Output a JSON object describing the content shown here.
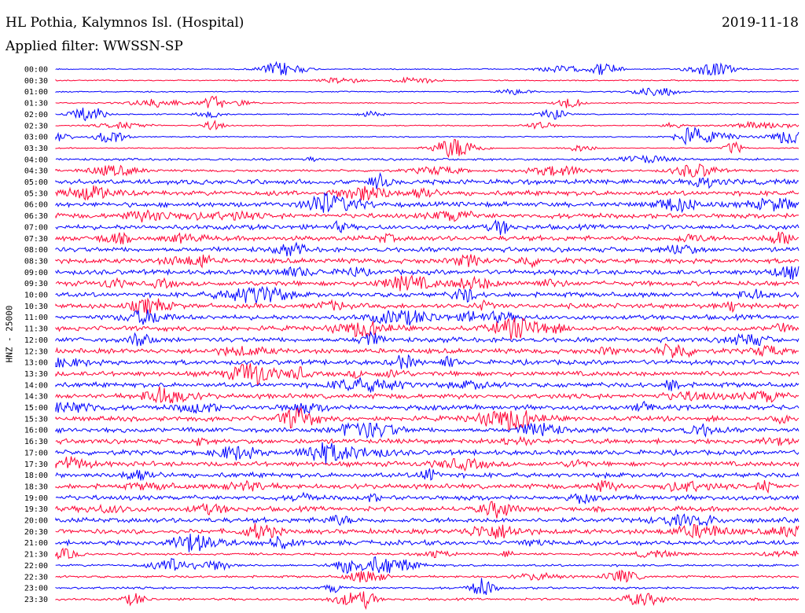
{
  "header": {
    "station": "HL Pothia, Kalymnos Isl. (Hospital)",
    "date": "2019-11-18",
    "filter": "Applied filter: WWSSN-SP"
  },
  "chart_data": {
    "type": "line",
    "title": "HL Pothia, Kalymnos Isl. (Hospital)",
    "date": "2019-11-18",
    "filter": "WWSSN-SP",
    "ylabel": "HNZ - 25000",
    "colors": [
      "#0000ff",
      "#ff0033"
    ],
    "row_labels": [
      "00:00",
      "00:30",
      "01:00",
      "01:30",
      "02:00",
      "02:30",
      "03:00",
      "03:30",
      "04:00",
      "04:30",
      "05:00",
      "05:30",
      "06:00",
      "06:30",
      "07:00",
      "07:30",
      "08:00",
      "08:30",
      "09:00",
      "09:30",
      "10:00",
      "10:30",
      "11:00",
      "11:30",
      "12:00",
      "12:30",
      "13:00",
      "13:30",
      "14:00",
      "14:30",
      "15:00",
      "15:30",
      "16:00",
      "16:30",
      "17:00",
      "17:30",
      "18:00",
      "18:30",
      "19:00",
      "19:30",
      "20:00",
      "20:30",
      "21:00",
      "21:30",
      "22:00",
      "22:30",
      "23:00",
      "23:30"
    ]
  }
}
